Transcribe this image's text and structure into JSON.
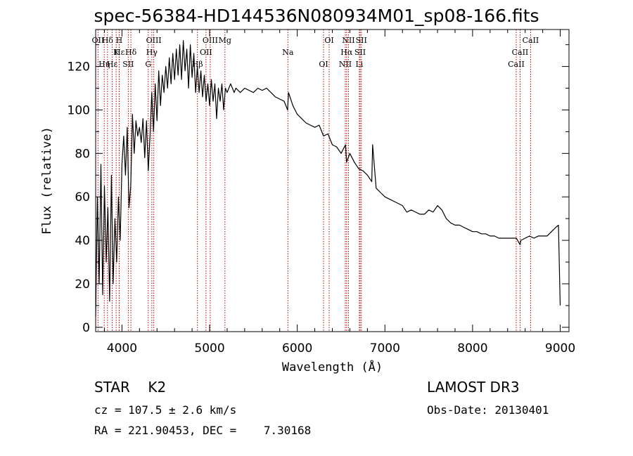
{
  "chart_data": {
    "type": "line",
    "title": "spec-56384-HD144536N080934M01_sp08-166.fits",
    "xlabel": "Wavelength (Å)",
    "ylabel": "Flux (relative)",
    "xlim": [
      3700,
      9100
    ],
    "ylim": [
      -2,
      137
    ],
    "xticks": [
      4000,
      5000,
      6000,
      7000,
      8000,
      9000
    ],
    "yticks": [
      0,
      20,
      40,
      60,
      80,
      100,
      120
    ],
    "grid": false,
    "series": [
      {
        "name": "flux",
        "x": [
          3700,
          3720,
          3740,
          3760,
          3780,
          3800,
          3820,
          3840,
          3860,
          3880,
          3900,
          3920,
          3940,
          3960,
          3980,
          4000,
          4020,
          4040,
          4060,
          4080,
          4100,
          4120,
          4140,
          4160,
          4180,
          4200,
          4220,
          4240,
          4260,
          4280,
          4300,
          4320,
          4340,
          4360,
          4380,
          4400,
          4420,
          4440,
          4460,
          4480,
          4500,
          4520,
          4540,
          4560,
          4580,
          4600,
          4620,
          4640,
          4660,
          4680,
          4700,
          4720,
          4740,
          4760,
          4780,
          4800,
          4820,
          4840,
          4860,
          4880,
          4900,
          4920,
          4940,
          4960,
          4980,
          5000,
          5020,
          5040,
          5060,
          5080,
          5100,
          5120,
          5140,
          5160,
          5180,
          5200,
          5220,
          5240,
          5260,
          5280,
          5300,
          5350,
          5400,
          5450,
          5500,
          5550,
          5600,
          5650,
          5700,
          5750,
          5800,
          5850,
          5890,
          5900,
          5950,
          6000,
          6050,
          6100,
          6150,
          6200,
          6250,
          6300,
          6350,
          6400,
          6450,
          6500,
          6550,
          6563,
          6600,
          6650,
          6700,
          6750,
          6800,
          6850,
          6860,
          6900,
          6950,
          7000,
          7050,
          7100,
          7150,
          7200,
          7250,
          7300,
          7350,
          7400,
          7450,
          7500,
          7550,
          7600,
          7650,
          7700,
          7750,
          7800,
          7850,
          7900,
          7950,
          8000,
          8050,
          8100,
          8150,
          8200,
          8250,
          8300,
          8350,
          8400,
          8450,
          8500,
          8542,
          8550,
          8600,
          8650,
          8700,
          8750,
          8800,
          8850,
          8900,
          8950,
          8980,
          9000
        ],
        "y": [
          5,
          60,
          20,
          75,
          15,
          65,
          30,
          55,
          12,
          70,
          20,
          50,
          30,
          60,
          40,
          75,
          88,
          70,
          92,
          55,
          65,
          98,
          80,
          95,
          88,
          92,
          85,
          96,
          78,
          95,
          72,
          88,
          108,
          90,
          112,
          95,
          118,
          102,
          116,
          108,
          120,
          110,
          124,
          112,
          126,
          114,
          128,
          116,
          130,
          114,
          132,
          118,
          128,
          110,
          130,
          115,
          126,
          108,
          120,
          108,
          118,
          106,
          116,
          104,
          112,
          102,
          114,
          104,
          112,
          96,
          110,
          104,
          112,
          100,
          110,
          108,
          110,
          112,
          110,
          108,
          110,
          108,
          110,
          109,
          108,
          110,
          109,
          110,
          108,
          106,
          105,
          104,
          100,
          108,
          102,
          98,
          96,
          94,
          93,
          92,
          93,
          88,
          89,
          84,
          83,
          80,
          84,
          76,
          80,
          76,
          73,
          72,
          70,
          67,
          84,
          64,
          62,
          60,
          59,
          58,
          57,
          56,
          53,
          54,
          53,
          52,
          52,
          54,
          53,
          56,
          54,
          50,
          48,
          47,
          47,
          46,
          45,
          44,
          44,
          43,
          43,
          42,
          42,
          41,
          41,
          41,
          41,
          41,
          38,
          40,
          41,
          42,
          41,
          42,
          42,
          42,
          44,
          46,
          47,
          10
        ]
      }
    ],
    "lines": [
      {
        "label": "Hδ",
        "wavelength": 3835
      },
      {
        "label": "K",
        "wavelength": 3934
      },
      {
        "label": "Hε",
        "wavelength": 3889
      },
      {
        "label": "OII",
        "wavelength": 3727
      },
      {
        "label": "Hε",
        "wavelength": 3970
      },
      {
        "label": "Hη",
        "wavelength": 3798
      },
      {
        "label": "H",
        "wavelength": 3968
      },
      {
        "label": "Hδ",
        "wavelength": 4102
      },
      {
        "label": "SII",
        "wavelength": 4072
      },
      {
        "label": "OIII",
        "wavelength": 4363
      },
      {
        "label": "Hγ",
        "wavelength": 4341
      },
      {
        "label": "G",
        "wavelength": 4300
      },
      {
        "label": "OIII",
        "wavelength": 5007
      },
      {
        "label": "OII",
        "wavelength": 4959
      },
      {
        "label": "Hβ",
        "wavelength": 4861
      },
      {
        "label": "Mg",
        "wavelength": 5175
      },
      {
        "label": "Na",
        "wavelength": 5893
      },
      {
        "label": "OI",
        "wavelength": 6300
      },
      {
        "label": "OI",
        "wavelength": 6364
      },
      {
        "label": "Hα",
        "wavelength": 6563
      },
      {
        "label": "NII",
        "wavelength": 6548
      },
      {
        "label": "NII",
        "wavelength": 6584
      },
      {
        "label": "SII",
        "wavelength": 6717
      },
      {
        "label": "Li",
        "wavelength": 6708
      },
      {
        "label": "SII",
        "wavelength": 6731
      },
      {
        "label": "CaII",
        "wavelength": 8542
      },
      {
        "label": "CaII",
        "wavelength": 8498
      },
      {
        "label": "CaII",
        "wavelength": 8662
      }
    ]
  },
  "info": {
    "class": "STAR    K2",
    "cz": "cz = 107.5 ± 2.6 km/s",
    "radec": "RA = 221.90453, DEC =    7.30168",
    "survey": "LAMOST DR3",
    "obs_date": "Obs-Date: 20130401"
  }
}
